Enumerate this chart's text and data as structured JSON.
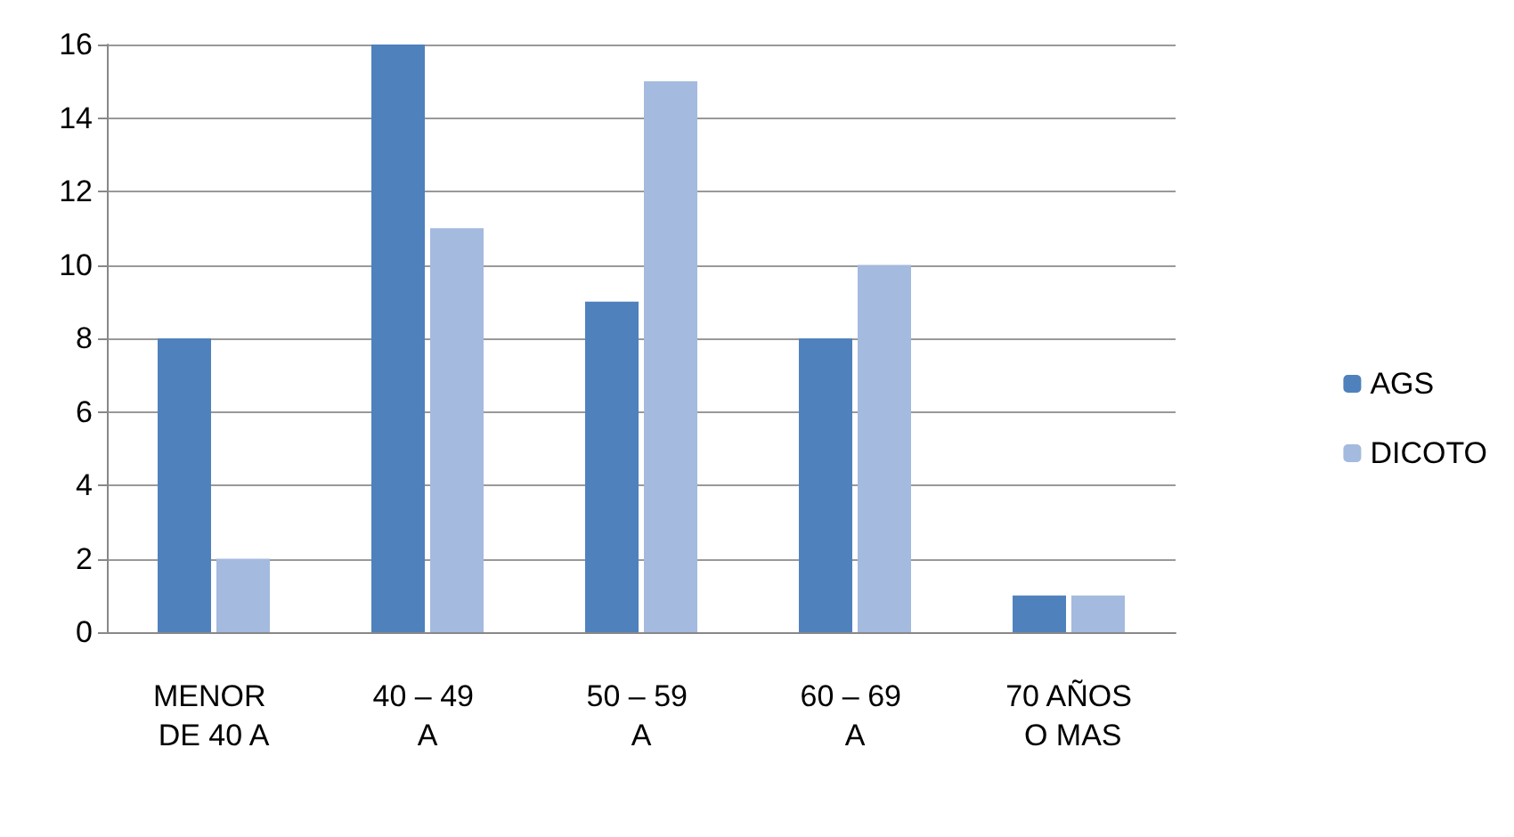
{
  "chart_data": {
    "type": "bar",
    "categories": [
      "MENOR DE 40 A",
      "40 – 49 A",
      "50 – 59 A",
      "60 – 69 A",
      "70 AÑOS O MAS"
    ],
    "series": [
      {
        "name": "AGS",
        "color": "#4f81bd",
        "values": [
          8,
          16,
          9,
          8,
          1
        ]
      },
      {
        "name": "DICOTO",
        "color": "#a4bade",
        "values": [
          2,
          11,
          15,
          10,
          1
        ]
      }
    ],
    "ylim": [
      0,
      16
    ],
    "yticks": [
      0,
      2,
      4,
      6,
      8,
      10,
      12,
      14,
      16
    ],
    "grid": "y",
    "legend": "right"
  }
}
